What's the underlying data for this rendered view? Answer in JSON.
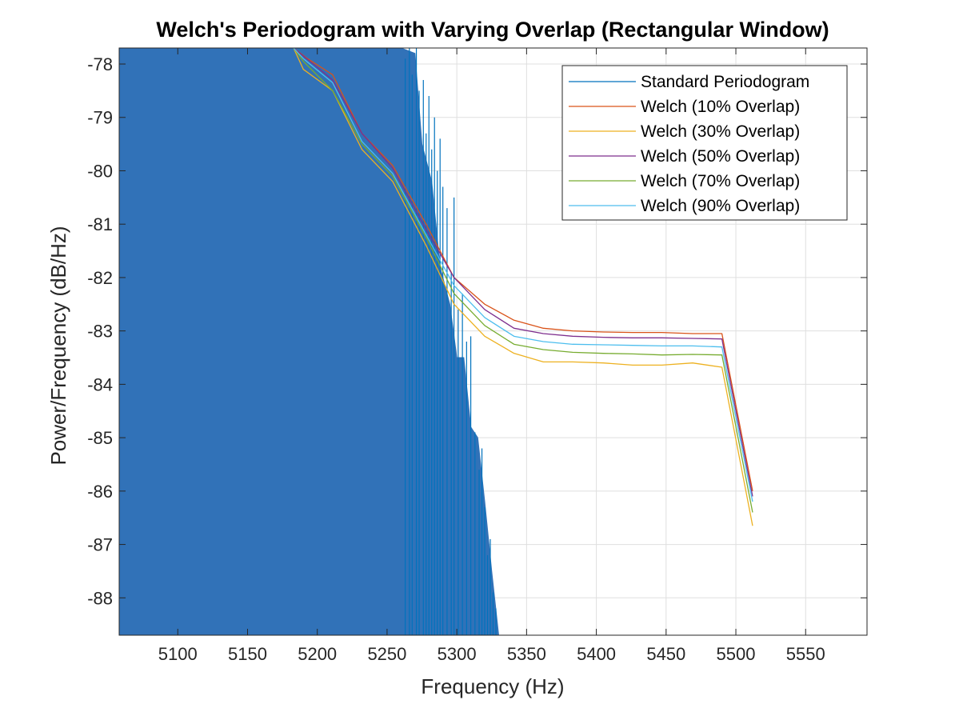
{
  "chart_data": {
    "type": "line",
    "title": "Welch's Periodogram with Varying Overlap (Rectangular Window)",
    "xlabel": "Frequency (Hz)",
    "ylabel": "Power/Frequency (dB/Hz)",
    "xlim": [
      5058,
      5594
    ],
    "ylim": [
      -88.7,
      -77.7
    ],
    "x_ticks": [
      5100,
      5150,
      5200,
      5250,
      5300,
      5350,
      5400,
      5450,
      5500,
      5550
    ],
    "y_ticks": [
      -78,
      -79,
      -80,
      -81,
      -82,
      -83,
      -84,
      -85,
      -86,
      -87,
      -88
    ],
    "grid": true,
    "legend_position": "top-right",
    "series": [
      {
        "name": "Standard Periodogram",
        "color": "#0072BD",
        "style": "dense-noisy",
        "envelope": {
          "x": [
            5058,
            5120,
            5180,
            5200,
            5230,
            5255,
            5260,
            5270,
            5275,
            5282,
            5288,
            5295,
            5300,
            5305,
            5310,
            5315,
            5320,
            5325,
            5330
          ],
          "y": [
            -77.7,
            -77.7,
            -77.7,
            -77.7,
            -77.7,
            -77.7,
            -77.7,
            -77.8,
            -79.5,
            -80.2,
            -81.8,
            -82.5,
            -83.5,
            -83.5,
            -84.8,
            -85.0,
            -86.2,
            -87.5,
            -88.7
          ]
        },
        "spikes": [
          {
            "x": 5263,
            "y": -77.9
          },
          {
            "x": 5266,
            "y": -77.7
          },
          {
            "x": 5268,
            "y": -78.2
          },
          {
            "x": 5271,
            "y": -77.7
          },
          {
            "x": 5273,
            "y": -78.5
          },
          {
            "x": 5276,
            "y": -78.3
          },
          {
            "x": 5278,
            "y": -79.3
          },
          {
            "x": 5280,
            "y": -78.6
          },
          {
            "x": 5282,
            "y": -79.6
          },
          {
            "x": 5284,
            "y": -79.0
          },
          {
            "x": 5286,
            "y": -80.0
          },
          {
            "x": 5288,
            "y": -79.4
          },
          {
            "x": 5290,
            "y": -80.3
          },
          {
            "x": 5293,
            "y": -80.7
          },
          {
            "x": 5296,
            "y": -81.9
          },
          {
            "x": 5298,
            "y": -80.5
          },
          {
            "x": 5301,
            "y": -82.6
          },
          {
            "x": 5304,
            "y": -82.3
          },
          {
            "x": 5307,
            "y": -83.2
          },
          {
            "x": 5310,
            "y": -83.1
          },
          {
            "x": 5313,
            "y": -84.9
          },
          {
            "x": 5316,
            "y": -85.6
          },
          {
            "x": 5318,
            "y": -85.2
          },
          {
            "x": 5320,
            "y": -86.3
          },
          {
            "x": 5322,
            "y": -87.2
          },
          {
            "x": 5324,
            "y": -86.9
          },
          {
            "x": 5326,
            "y": -87.9
          },
          {
            "x": 5328,
            "y": -88.2
          }
        ]
      },
      {
        "name": "Welch (10% Overlap)",
        "color": "#D95319",
        "x": [
          5183,
          5193,
          5211,
          5232,
          5254,
          5278,
          5298,
          5320,
          5341,
          5362,
          5383,
          5405,
          5426,
          5447,
          5469,
          5490,
          5512
        ],
        "y": [
          -77.7,
          -77.9,
          -78.2,
          -79.3,
          -79.9,
          -81.0,
          -82.0,
          -82.5,
          -82.8,
          -82.95,
          -83.0,
          -83.02,
          -83.03,
          -83.03,
          -83.05,
          -83.05,
          -86.0
        ]
      },
      {
        "name": "Welch (30% Overlap)",
        "color": "#EDB120",
        "x": [
          5183,
          5190,
          5211,
          5232,
          5254,
          5278,
          5298,
          5320,
          5341,
          5362,
          5383,
          5405,
          5426,
          5447,
          5469,
          5490,
          5512
        ],
        "y": [
          -77.7,
          -78.1,
          -78.5,
          -79.6,
          -80.2,
          -81.4,
          -82.5,
          -83.1,
          -83.42,
          -83.58,
          -83.58,
          -83.6,
          -83.64,
          -83.64,
          -83.6,
          -83.68,
          -86.65
        ]
      },
      {
        "name": "Welch (50% Overlap)",
        "color": "#7E2F8E",
        "x": [
          5183,
          5190,
          5211,
          5232,
          5254,
          5278,
          5298,
          5320,
          5341,
          5362,
          5383,
          5405,
          5426,
          5447,
          5469,
          5490,
          5512
        ],
        "y": [
          -77.7,
          -77.85,
          -78.3,
          -79.3,
          -79.95,
          -81.1,
          -82.0,
          -82.6,
          -82.95,
          -83.05,
          -83.1,
          -83.12,
          -83.13,
          -83.13,
          -83.14,
          -83.15,
          -86.1
        ]
      },
      {
        "name": "Welch (70% Overlap)",
        "color": "#77AC30",
        "x": [
          5183,
          5190,
          5211,
          5232,
          5254,
          5278,
          5298,
          5320,
          5341,
          5362,
          5383,
          5405,
          5426,
          5447,
          5469,
          5490,
          5512
        ],
        "y": [
          -77.7,
          -77.95,
          -78.5,
          -79.5,
          -80.1,
          -81.25,
          -82.3,
          -82.9,
          -83.25,
          -83.35,
          -83.4,
          -83.42,
          -83.43,
          -83.45,
          -83.44,
          -83.45,
          -86.4
        ]
      },
      {
        "name": "Welch (90% Overlap)",
        "color": "#4DBEEE",
        "x": [
          5183,
          5190,
          5211,
          5232,
          5254,
          5278,
          5298,
          5320,
          5341,
          5362,
          5383,
          5405,
          5426,
          5447,
          5469,
          5490,
          5512
        ],
        "y": [
          -77.7,
          -77.9,
          -78.35,
          -79.45,
          -80.05,
          -81.2,
          -82.15,
          -82.75,
          -83.1,
          -83.2,
          -83.25,
          -83.26,
          -83.27,
          -83.28,
          -83.28,
          -83.3,
          -86.2
        ]
      }
    ]
  }
}
